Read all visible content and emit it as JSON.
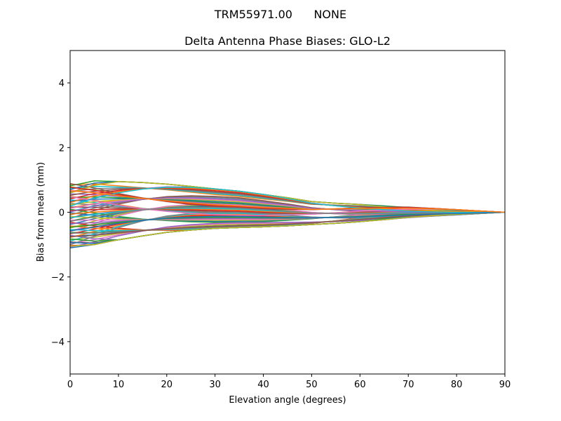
{
  "chart_data": {
    "type": "line",
    "suptitle": "TRM55971.00      NONE",
    "title": "Delta Antenna Phase Biases: GLO-L2",
    "xlabel": "Elevation angle (degrees)",
    "ylabel": "Bias from mean (mm)",
    "xlim": [
      0,
      90
    ],
    "ylim": [
      -5,
      5
    ],
    "x_ticks": [
      0,
      10,
      20,
      30,
      40,
      50,
      60,
      70,
      80,
      90
    ],
    "y_ticks": [
      -4,
      -2,
      0,
      2,
      4
    ],
    "y_tick_labels": [
      "−4",
      "−2",
      "0",
      "2",
      "4"
    ],
    "x": [
      0,
      5,
      10,
      15,
      20,
      25,
      30,
      35,
      40,
      45,
      50,
      55,
      60,
      65,
      70,
      75,
      80,
      85,
      90
    ],
    "series_count": 72,
    "color_cycle": [
      "#1f77b4",
      "#ff7f0e",
      "#2ca02c",
      "#d62728",
      "#9467bd",
      "#8c564b",
      "#e377c2",
      "#7f7f7f",
      "#bcbd22",
      "#17becf"
    ],
    "series_envelope": {
      "upper": [
        0.9,
        0.97,
        0.95,
        0.92,
        0.87,
        0.8,
        0.72,
        0.65,
        0.55,
        0.45,
        0.33,
        0.28,
        0.24,
        0.2,
        0.16,
        0.12,
        0.08,
        0.04,
        0.0
      ],
      "lower": [
        -1.1,
        -1.0,
        -0.85,
        -0.73,
        -0.62,
        -0.55,
        -0.5,
        -0.47,
        -0.45,
        -0.42,
        -0.38,
        -0.34,
        -0.29,
        -0.23,
        -0.17,
        -0.12,
        -0.08,
        -0.04,
        0.0
      ]
    },
    "grid": false,
    "legend": "none"
  }
}
